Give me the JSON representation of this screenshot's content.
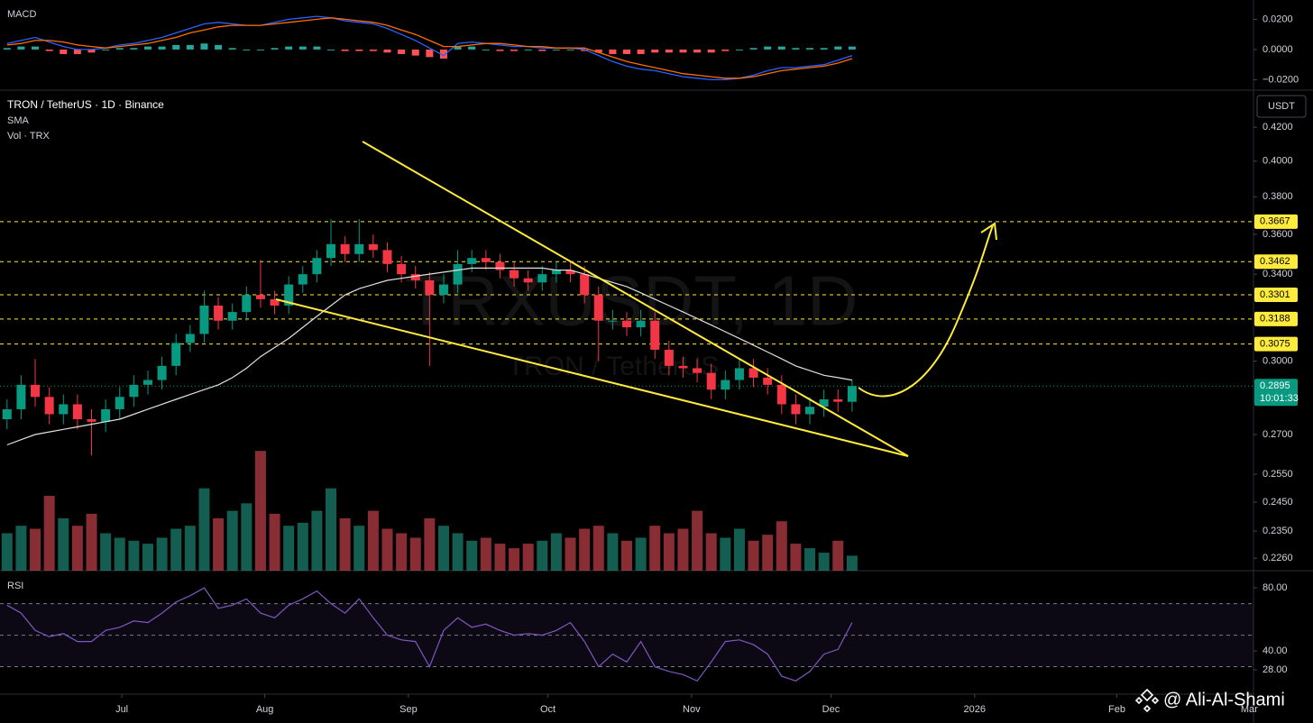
{
  "chart_data": [
    {
      "type": "macd",
      "title": "MACD",
      "ylim": [
        -0.0269,
        0.0328
      ],
      "yticks": [
        {
          "value": 0.02,
          "label": "0.0200"
        },
        {
          "value": 0,
          "label": "0.0000"
        },
        {
          "value": -0.02,
          "label": "−0.0200"
        }
      ],
      "macd": {
        "color": "#2962ff",
        "values": [
          0.004,
          0.006,
          0.008,
          0.005,
          0.002,
          0.0,
          0.0,
          0.001,
          0.003,
          0.004,
          0.006,
          0.008,
          0.011,
          0.014,
          0.017,
          0.018,
          0.017,
          0.016,
          0.016,
          0.018,
          0.02,
          0.021,
          0.022,
          0.021,
          0.019,
          0.018,
          0.017,
          0.014,
          0.01,
          0.006,
          0.001,
          -0.004,
          0.004,
          0.005,
          0.004,
          0.003,
          0.002,
          0.002,
          0.001,
          0.001,
          0.001,
          0.0,
          -0.004,
          -0.008,
          -0.011,
          -0.013,
          -0.014,
          -0.016,
          -0.018,
          -0.019,
          -0.02,
          -0.02,
          -0.019,
          -0.017,
          -0.014,
          -0.012,
          -0.012,
          -0.011,
          -0.01,
          -0.007,
          -0.004
        ]
      },
      "signal": {
        "color": "#ff6d00",
        "values": [
          0.003,
          0.004,
          0.006,
          0.006,
          0.005,
          0.003,
          0.002,
          0.001,
          0.002,
          0.003,
          0.004,
          0.006,
          0.008,
          0.011,
          0.013,
          0.015,
          0.016,
          0.016,
          0.016,
          0.017,
          0.018,
          0.019,
          0.02,
          0.021,
          0.02,
          0.019,
          0.018,
          0.016,
          0.013,
          0.01,
          0.006,
          0.002,
          0.002,
          0.003,
          0.004,
          0.004,
          0.003,
          0.002,
          0.002,
          0.001,
          0.001,
          0.001,
          -0.002,
          -0.005,
          -0.008,
          -0.01,
          -0.012,
          -0.014,
          -0.016,
          -0.017,
          -0.018,
          -0.019,
          -0.019,
          -0.018,
          -0.016,
          -0.014,
          -0.013,
          -0.012,
          -0.011,
          -0.009,
          -0.006
        ]
      },
      "histogram": {
        "color_up": "#26a69a",
        "color_down": "#ff5252",
        "values": [
          0.001,
          0.002,
          0.002,
          -0.001,
          -0.003,
          -0.003,
          -0.002,
          0,
          0.001,
          0.001,
          0.002,
          0.002,
          0.003,
          0.003,
          0.004,
          0.003,
          0.001,
          0,
          0,
          0.001,
          0.002,
          0.002,
          0.002,
          0,
          -0.001,
          -0.001,
          -0.001,
          -0.002,
          -0.003,
          -0.004,
          -0.005,
          -0.006,
          0.002,
          0.002,
          0,
          -0.001,
          -0.001,
          0,
          -0.001,
          0,
          0,
          -0.001,
          -0.002,
          -0.003,
          -0.003,
          -0.003,
          -0.002,
          -0.002,
          -0.002,
          -0.002,
          -0.002,
          -0.001,
          0,
          0.001,
          0.002,
          0.002,
          0.001,
          0.001,
          0.001,
          0.002,
          0.002
        ]
      }
    },
    {
      "type": "candlestick",
      "title": "TRON / TetherUS · 1D · Binance",
      "sma_label": "SMA",
      "volume_label": "Vol · TRX",
      "watermark": "TRXUSDT, 1D",
      "watermark_sub": "TRON / TetherUS",
      "currency": "USDT",
      "log": true,
      "ylim": [
        0.222,
        0.443
      ],
      "yticks": [
        {
          "value": 0.42,
          "label": "0.4200"
        },
        {
          "value": 0.4,
          "label": "0.4000"
        },
        {
          "value": 0.38,
          "label": "0.3800"
        },
        {
          "value": 0.36,
          "label": "0.3600"
        },
        {
          "value": 0.34,
          "label": "0.3400"
        },
        {
          "value": 0.3,
          "label": "0.3000"
        },
        {
          "value": 0.27,
          "label": "0.2700"
        },
        {
          "value": 0.255,
          "label": "0.2550"
        },
        {
          "value": 0.245,
          "label": "0.2450"
        },
        {
          "value": 0.235,
          "label": "0.2350"
        },
        {
          "value": 0.226,
          "label": "0.2260"
        }
      ],
      "xlim": [
        0,
        89
      ],
      "xticks": [
        {
          "value": 8.65,
          "label": "Jul"
        },
        {
          "value": 18.8,
          "label": "Aug"
        },
        {
          "value": 29.0,
          "label": "Sep"
        },
        {
          "value": 38.9,
          "label": "Oct"
        },
        {
          "value": 49.1,
          "label": "Nov"
        },
        {
          "value": 59.0,
          "label": "Dec"
        },
        {
          "value": 69.2,
          "label": "2026"
        },
        {
          "value": 79.3,
          "label": "Feb"
        },
        {
          "value": 88.7,
          "label": "Mar"
        }
      ],
      "up_color": "#089981",
      "down_color": "#f23645",
      "open": [
        0.276,
        0.28,
        0.29,
        0.285,
        0.278,
        0.282,
        0.276,
        0.275,
        0.28,
        0.285,
        0.29,
        0.292,
        0.298,
        0.308,
        0.312,
        0.325,
        0.318,
        0.322,
        0.33,
        0.328,
        0.325,
        0.335,
        0.34,
        0.348,
        0.355,
        0.35,
        0.355,
        0.352,
        0.345,
        0.34,
        0.337,
        0.33,
        0.335,
        0.345,
        0.348,
        0.346,
        0.342,
        0.338,
        0.336,
        0.34,
        0.342,
        0.34,
        0.33,
        0.318,
        0.318,
        0.315,
        0.318,
        0.305,
        0.298,
        0.297,
        0.295,
        0.288,
        0.292,
        0.297,
        0.293,
        0.29,
        0.282,
        0.278,
        0.281,
        0.284,
        0.283
      ],
      "high": [
        0.284,
        0.294,
        0.301,
        0.289,
        0.286,
        0.286,
        0.28,
        0.284,
        0.289,
        0.294,
        0.296,
        0.302,
        0.312,
        0.316,
        0.332,
        0.329,
        0.326,
        0.334,
        0.347,
        0.332,
        0.339,
        0.344,
        0.352,
        0.368,
        0.359,
        0.368,
        0.36,
        0.356,
        0.349,
        0.344,
        0.341,
        0.34,
        0.352,
        0.352,
        0.352,
        0.35,
        0.346,
        0.342,
        0.344,
        0.346,
        0.346,
        0.344,
        0.334,
        0.323,
        0.322,
        0.323,
        0.322,
        0.309,
        0.302,
        0.301,
        0.299,
        0.296,
        0.301,
        0.301,
        0.297,
        0.294,
        0.286,
        0.285,
        0.288,
        0.288,
        0.292
      ],
      "low": [
        0.272,
        0.276,
        0.281,
        0.274,
        0.274,
        0.272,
        0.262,
        0.271,
        0.276,
        0.281,
        0.286,
        0.288,
        0.294,
        0.304,
        0.308,
        0.314,
        0.314,
        0.318,
        0.324,
        0.321,
        0.321,
        0.331,
        0.336,
        0.344,
        0.346,
        0.346,
        0.348,
        0.341,
        0.336,
        0.333,
        0.298,
        0.326,
        0.331,
        0.341,
        0.342,
        0.338,
        0.334,
        0.332,
        0.332,
        0.336,
        0.336,
        0.326,
        0.3,
        0.314,
        0.311,
        0.311,
        0.301,
        0.294,
        0.293,
        0.291,
        0.284,
        0.284,
        0.288,
        0.289,
        0.286,
        0.278,
        0.274,
        0.274,
        0.277,
        0.279,
        0.279
      ],
      "close": [
        0.28,
        0.29,
        0.285,
        0.278,
        0.282,
        0.276,
        0.275,
        0.28,
        0.285,
        0.29,
        0.292,
        0.298,
        0.308,
        0.312,
        0.325,
        0.318,
        0.322,
        0.33,
        0.328,
        0.325,
        0.335,
        0.34,
        0.348,
        0.355,
        0.35,
        0.355,
        0.352,
        0.345,
        0.34,
        0.337,
        0.33,
        0.335,
        0.345,
        0.348,
        0.346,
        0.342,
        0.338,
        0.336,
        0.34,
        0.342,
        0.34,
        0.33,
        0.318,
        0.318,
        0.315,
        0.318,
        0.305,
        0.298,
        0.297,
        0.295,
        0.288,
        0.292,
        0.297,
        0.293,
        0.29,
        0.282,
        0.278,
        0.281,
        0.284,
        0.283,
        0.2895
      ],
      "sma": {
        "color": "#e0e0e0",
        "values": [
          0.266,
          0.268,
          0.27,
          0.271,
          0.272,
          0.273,
          0.274,
          0.275,
          0.276,
          0.278,
          0.28,
          0.282,
          0.284,
          0.286,
          0.288,
          0.29,
          0.293,
          0.297,
          0.302,
          0.306,
          0.31,
          0.315,
          0.32,
          0.325,
          0.33,
          0.333,
          0.335,
          0.337,
          0.338,
          0.339,
          0.34,
          0.341,
          0.342,
          0.343,
          0.343,
          0.343,
          0.343,
          0.343,
          0.343,
          0.342,
          0.342,
          0.34,
          0.338,
          0.336,
          0.334,
          0.331,
          0.328,
          0.325,
          0.322,
          0.319,
          0.316,
          0.313,
          0.31,
          0.307,
          0.304,
          0.301,
          0.298,
          0.296,
          0.294,
          0.293,
          0.292
        ]
      },
      "volume": {
        "up_color": "#22ab94",
        "down_color": "#f7525f",
        "values": [
          25,
          30,
          28,
          50,
          35,
          30,
          38,
          25,
          22,
          20,
          18,
          22,
          28,
          30,
          55,
          35,
          40,
          45,
          80,
          38,
          30,
          32,
          40,
          55,
          35,
          30,
          40,
          28,
          25,
          22,
          35,
          30,
          25,
          20,
          22,
          18,
          15,
          18,
          20,
          25,
          22,
          28,
          30,
          25,
          20,
          22,
          30,
          25,
          28,
          40,
          25,
          22,
          28,
          20,
          24,
          33,
          18,
          15,
          12,
          20,
          10
        ]
      },
      "levels": {
        "color": "#ffeb3b",
        "values": [
          0.3667,
          0.3462,
          0.3301,
          0.3188,
          0.3075
        ]
      },
      "last_price": 0.2895,
      "countdown": "10:01:33"
    },
    {
      "type": "rsi",
      "title": "RSI",
      "color": "#7e57c2",
      "ylim": [
        12.6,
        86.9
      ],
      "yticks": [
        {
          "value": 80,
          "label": "80.00"
        },
        {
          "value": 40,
          "label": "40.00"
        },
        {
          "value": 28,
          "label": "28.00"
        }
      ],
      "levels": [
        70,
        50,
        30
      ],
      "values": [
        69,
        64,
        53,
        49,
        51,
        46,
        46,
        53,
        55,
        59,
        58,
        64,
        71,
        75,
        80,
        67,
        69,
        73,
        64,
        61,
        69,
        73,
        78,
        70,
        64,
        73,
        61,
        50,
        47,
        46,
        30,
        53,
        61,
        55,
        57,
        53,
        50,
        51,
        50,
        53,
        58,
        46,
        30,
        38,
        33,
        46,
        30,
        27,
        25,
        21,
        33,
        46,
        47,
        44,
        38,
        24,
        21,
        27,
        38,
        41,
        58
      ]
    }
  ],
  "credit": "@ Ali-Al-Shami"
}
